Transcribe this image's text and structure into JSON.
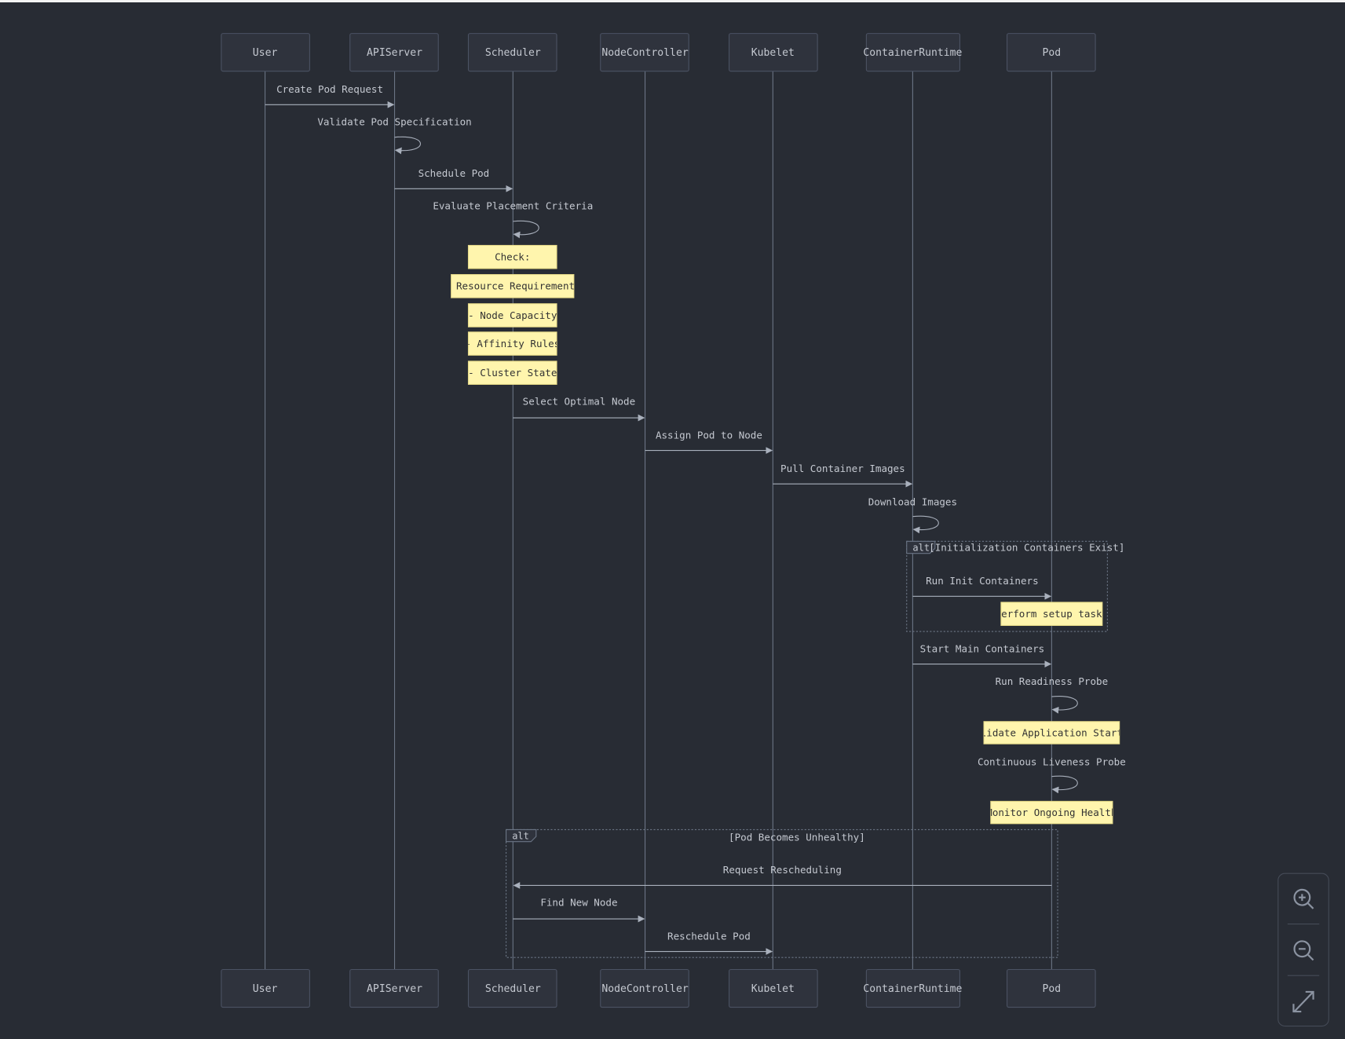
{
  "colors": {
    "background": "#282c34",
    "actor_fill": "#2f333d",
    "actor_stroke": "#4b5263",
    "lifeline": "#6b7585",
    "text": "#c5c9d1",
    "note_fill": "#fff5ad",
    "note_text": "#333333",
    "arrow": "#a9b0bc"
  },
  "actors": [
    "User",
    "APIServer",
    "Scheduler",
    "NodeController",
    "Kubelet",
    "ContainerRuntime",
    "Pod"
  ],
  "messages": [
    {
      "from": "User",
      "to": "APIServer",
      "label": "Create Pod Request"
    },
    {
      "from": "APIServer",
      "to": "APIServer",
      "label": "Validate Pod Specification"
    },
    {
      "from": "APIServer",
      "to": "Scheduler",
      "label": "Schedule Pod"
    },
    {
      "from": "Scheduler",
      "to": "Scheduler",
      "label": "Evaluate Placement Criteria"
    },
    {
      "from": "Scheduler",
      "to": "NodeController",
      "label": "Select Optimal Node"
    },
    {
      "from": "NodeController",
      "to": "Kubelet",
      "label": "Assign Pod to Node"
    },
    {
      "from": "Kubelet",
      "to": "ContainerRuntime",
      "label": "Pull Container Images"
    },
    {
      "from": "ContainerRuntime",
      "to": "ContainerRuntime",
      "label": "Download Images"
    },
    {
      "from": "ContainerRuntime",
      "to": "Pod",
      "label": "Run Init Containers"
    },
    {
      "from": "ContainerRuntime",
      "to": "Pod",
      "label": "Start Main Containers"
    },
    {
      "from": "Pod",
      "to": "Pod",
      "label": "Run Readiness Probe"
    },
    {
      "from": "Pod",
      "to": "Pod",
      "label": "Continuous Liveness Probe"
    },
    {
      "from": "Pod",
      "to": "Scheduler",
      "label": "Request Rescheduling"
    },
    {
      "from": "Scheduler",
      "to": "NodeController",
      "label": "Find New Node"
    },
    {
      "from": "NodeController",
      "to": "Kubelet",
      "label": "Reschedule Pod"
    }
  ],
  "notes": [
    {
      "over": "Scheduler",
      "text": "Check:"
    },
    {
      "over": "Scheduler",
      "text": "- Resource Requirements"
    },
    {
      "over": "Scheduler",
      "text": "- Node Capacity"
    },
    {
      "over": "Scheduler",
      "text": "- Affinity Rules"
    },
    {
      "over": "Scheduler",
      "text": "- Cluster State"
    },
    {
      "over": "Pod",
      "text": "Perform setup tasks"
    },
    {
      "over": "Pod",
      "text": "Validate Application Startup"
    },
    {
      "over": "Pod",
      "text": "Monitor Ongoing Health"
    }
  ],
  "fragments": [
    {
      "type": "alt",
      "condition": "[Initialization Containers Exist]"
    },
    {
      "type": "alt",
      "condition": "[Pod Becomes Unhealthy]"
    }
  ],
  "controls": [
    {
      "name": "zoom-in",
      "icon": "zoom-in-icon"
    },
    {
      "name": "zoom-out",
      "icon": "zoom-out-icon"
    },
    {
      "name": "fit",
      "icon": "expand-icon"
    }
  ]
}
